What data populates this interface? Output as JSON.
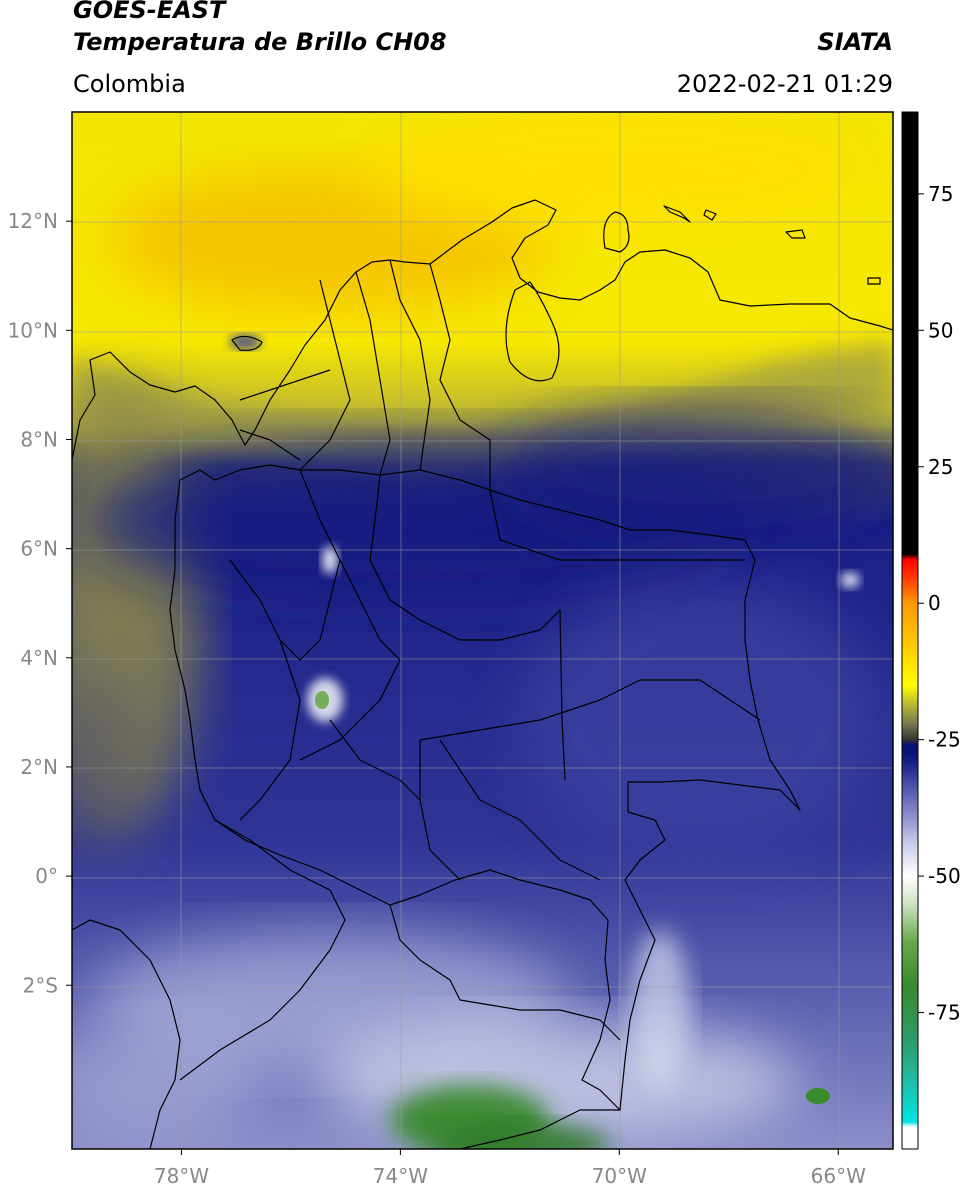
{
  "header": {
    "satellite": "GOES-EAST",
    "product": "Temperatura de Brillo CH08",
    "organization": "SIATA",
    "region": "Colombia",
    "timestamp": "2022-02-21 01:29"
  },
  "map": {
    "lat_range": [
      -5,
      14
    ],
    "lon_range": [
      -80,
      -65
    ],
    "lat_ticks": [
      {
        "value": 12,
        "label": "12°N"
      },
      {
        "value": 10,
        "label": "10°N"
      },
      {
        "value": 8,
        "label": "8°N"
      },
      {
        "value": 6,
        "label": "6°N"
      },
      {
        "value": 4,
        "label": "4°N"
      },
      {
        "value": 2,
        "label": "2°N"
      },
      {
        "value": 0,
        "label": "0°"
      },
      {
        "value": -2,
        "label": "2°S"
      }
    ],
    "lon_ticks": [
      {
        "value": -78,
        "label": "78°W"
      },
      {
        "value": -74,
        "label": "74°W"
      },
      {
        "value": -70,
        "label": "70°W"
      },
      {
        "value": -66,
        "label": "66°W"
      }
    ]
  },
  "colorbar": {
    "range": [
      -100,
      90
    ],
    "ticks": [
      {
        "value": 75,
        "label": "75"
      },
      {
        "value": 50,
        "label": "50"
      },
      {
        "value": 25,
        "label": "25"
      },
      {
        "value": 0,
        "label": "0"
      },
      {
        "value": -25,
        "label": "-25"
      },
      {
        "value": -50,
        "label": "-50"
      },
      {
        "value": -75,
        "label": "-75"
      }
    ],
    "stops": [
      {
        "value": -100,
        "color": "#ffffff"
      },
      {
        "value": -96,
        "color": "#ffffff"
      },
      {
        "value": -95,
        "color": "#00e5e5"
      },
      {
        "value": -88,
        "color": "#1fbfa8"
      },
      {
        "value": -80,
        "color": "#2e9a6a"
      },
      {
        "value": -70,
        "color": "#3a8a2e"
      },
      {
        "value": -62,
        "color": "#6aa84f"
      },
      {
        "value": -55,
        "color": "#cfe3c4"
      },
      {
        "value": -50,
        "color": "#ffffff"
      },
      {
        "value": -44,
        "color": "#c8cbe8"
      },
      {
        "value": -38,
        "color": "#7f84c4"
      },
      {
        "value": -32,
        "color": "#3b40a0"
      },
      {
        "value": -28,
        "color": "#0d147a"
      },
      {
        "value": -26,
        "color": "#0a0f70"
      },
      {
        "value": -25,
        "color": "#333333"
      },
      {
        "value": -22,
        "color": "#7a7a50"
      },
      {
        "value": -19,
        "color": "#b0b03a"
      },
      {
        "value": -15,
        "color": "#ffff00"
      },
      {
        "value": -8,
        "color": "#ffcc00"
      },
      {
        "value": 0,
        "color": "#ff9900"
      },
      {
        "value": 5,
        "color": "#ff3300"
      },
      {
        "value": 8,
        "color": "#ff0000"
      },
      {
        "value": 9,
        "color": "#000000"
      },
      {
        "value": 90,
        "color": "#000000"
      }
    ]
  },
  "colors": {
    "frame": "#000000",
    "gridline": "#9a9a9a",
    "cold_cloud": "#1a2288",
    "dry_air": "#f5e000"
  }
}
